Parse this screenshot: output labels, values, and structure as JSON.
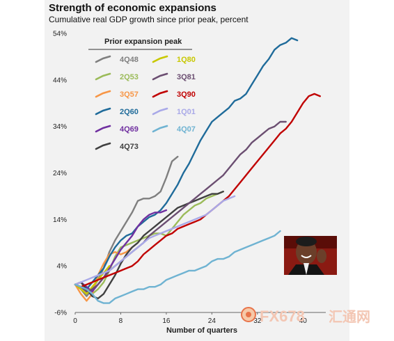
{
  "title": "Strength of economic expansions",
  "subtitle": "Cumulative real GDP growth since prior peak, percent",
  "watermark": {
    "brand": "FX678",
    "cn": "汇通网"
  },
  "photo": {
    "subject": "smiling-man-photo"
  },
  "chart_data": {
    "type": "line",
    "title": "Strength of economic expansions",
    "xlabel": "Number of quarters",
    "ylabel": "",
    "xlim": [
      0,
      44
    ],
    "ylim": [
      -6,
      54
    ],
    "x_ticks": [
      0,
      8,
      16,
      24,
      32,
      40
    ],
    "y_ticks": [
      -6,
      4,
      14,
      24,
      34,
      44,
      54
    ],
    "y_tick_labels": [
      "-6%",
      "4%",
      "14%",
      "24%",
      "34%",
      "44%",
      "54%"
    ],
    "legend_title": "Prior expansion peak",
    "legend_placement": "top-left",
    "grid": false,
    "series": [
      {
        "name": "4Q48",
        "color": "#7f7f7f",
        "x": [
          0,
          1,
          2,
          3,
          4,
          5,
          6,
          7,
          8,
          9,
          10,
          11,
          12,
          13,
          14,
          15,
          16,
          17,
          18
        ],
        "y": [
          0,
          -1,
          -2.5,
          -1,
          1,
          3.5,
          7,
          9.5,
          11.5,
          13.5,
          15.5,
          18,
          18.5,
          18.5,
          19,
          20,
          23,
          26.5,
          27.5
        ]
      },
      {
        "name": "2Q53",
        "color": "#9bbb59",
        "x": [
          0,
          1,
          2,
          3,
          4,
          5,
          6,
          7,
          8,
          9,
          10,
          11,
          12,
          13,
          14,
          15,
          16,
          17,
          18,
          19,
          20,
          21,
          22,
          23,
          24,
          25,
          26
        ],
        "y": [
          0,
          -0.5,
          -1.5,
          -2,
          -1,
          0.5,
          3,
          6,
          8,
          8.5,
          9,
          9.5,
          10,
          10.5,
          11,
          11,
          10.5,
          12,
          13.5,
          15,
          16,
          17,
          17.5,
          18.5,
          19,
          19.5,
          20
        ]
      },
      {
        "name": "3Q57",
        "color": "#f79646",
        "x": [
          0,
          1,
          2,
          3,
          4,
          5,
          6,
          7,
          8,
          9,
          10
        ],
        "y": [
          0,
          -2,
          -3.5,
          -2,
          2,
          4.5,
          6.5,
          7,
          6.5,
          7,
          8
        ]
      },
      {
        "name": "2Q60",
        "color": "#1f6b9a",
        "x": [
          0,
          1,
          2,
          3,
          4,
          5,
          6,
          7,
          8,
          9,
          10,
          11,
          12,
          13,
          14,
          15,
          16,
          17,
          18,
          19,
          20,
          21,
          22,
          23,
          24,
          25,
          26,
          27,
          28,
          29,
          30,
          31,
          32,
          33,
          34,
          35,
          36,
          37,
          38,
          39
        ],
        "y": [
          0,
          -0.5,
          -1,
          0.5,
          2,
          3.5,
          6,
          8,
          9.5,
          10.5,
          11,
          12.5,
          13.5,
          14.5,
          15,
          16,
          17.5,
          19.5,
          21.5,
          24,
          26,
          28.5,
          31,
          33,
          35,
          36,
          37,
          38,
          39.5,
          40,
          41,
          43,
          45,
          47,
          48.5,
          50.5,
          51.5,
          52,
          53,
          52.5
        ]
      },
      {
        "name": "4Q69",
        "color": "#7030a0",
        "x": [
          0,
          1,
          2,
          3,
          4,
          5,
          6,
          7,
          8,
          9,
          10,
          11,
          12,
          13,
          14,
          15,
          16
        ],
        "y": [
          0,
          0.5,
          -0.5,
          -1.5,
          0,
          1.5,
          3.5,
          5.5,
          7.5,
          9,
          10.5,
          12.5,
          14,
          15,
          15.5,
          15.5,
          16
        ]
      },
      {
        "name": "4Q73",
        "color": "#404040",
        "x": [
          0,
          1,
          2,
          3,
          4,
          5,
          6,
          7,
          8,
          9,
          10,
          11,
          12,
          13,
          14,
          15,
          16,
          17,
          18,
          19,
          20,
          21,
          22,
          23,
          24,
          25,
          26
        ],
        "y": [
          0,
          0.5,
          -1,
          -2.5,
          -3,
          -2,
          0,
          2,
          4.5,
          6.5,
          8,
          9,
          10.5,
          11.5,
          12.5,
          13.5,
          14.5,
          15.5,
          16.5,
          17,
          17.5,
          18,
          18.5,
          19,
          19.5,
          19.5,
          20
        ]
      },
      {
        "name": "1Q80",
        "color": "#c8c800",
        "x": [
          0,
          1,
          2,
          3,
          4,
          5,
          6
        ],
        "y": [
          0,
          -1,
          -2,
          -0.5,
          1,
          2.5,
          4
        ]
      },
      {
        "name": "3Q81",
        "color": "#6b4e71",
        "x": [
          0,
          1,
          2,
          3,
          4,
          5,
          6,
          7,
          8,
          9,
          10,
          11,
          12,
          13,
          14,
          15,
          16,
          17,
          18,
          19,
          20,
          21,
          22,
          23,
          24,
          25,
          26,
          27,
          28,
          29,
          30,
          31,
          32,
          33,
          34,
          35,
          36,
          37
        ],
        "y": [
          0,
          -0.5,
          -1.5,
          -1,
          0,
          1.5,
          3,
          4,
          5,
          6,
          7,
          8,
          9,
          10.5,
          11.5,
          12.5,
          13.5,
          14.5,
          15.5,
          16.5,
          17.5,
          18.5,
          19.5,
          20.5,
          21.5,
          22.5,
          23.5,
          25,
          26.5,
          28,
          29,
          30.5,
          31.5,
          32.5,
          33.5,
          34,
          35,
          35
        ]
      },
      {
        "name": "3Q90",
        "color": "#c00000",
        "x": [
          0,
          1,
          2,
          3,
          4,
          5,
          6,
          7,
          8,
          9,
          10,
          11,
          12,
          13,
          14,
          15,
          16,
          17,
          18,
          19,
          20,
          21,
          22,
          23,
          24,
          25,
          26,
          27,
          28,
          29,
          30,
          31,
          32,
          33,
          34,
          35,
          36,
          37,
          38,
          39,
          40,
          41,
          42,
          43
        ],
        "y": [
          0,
          -0.5,
          0,
          0.5,
          1,
          1.5,
          2,
          2.5,
          3,
          3.5,
          4,
          5,
          6.5,
          7.5,
          8.5,
          9.5,
          10.5,
          11,
          12,
          12.5,
          13,
          13.5,
          14,
          15,
          16,
          17,
          18,
          19,
          20.5,
          22,
          23.5,
          25,
          26.5,
          28,
          29.5,
          31,
          32.5,
          33.5,
          35,
          37,
          39,
          40.5,
          41,
          40.5
        ]
      },
      {
        "name": "1Q01",
        "color": "#a9a9e8",
        "x": [
          0,
          1,
          2,
          3,
          4,
          5,
          6,
          7,
          8,
          9,
          10,
          11,
          12,
          13,
          14,
          15,
          16,
          17,
          18,
          19,
          20,
          21,
          22,
          23,
          24,
          25,
          26,
          27,
          28
        ],
        "y": [
          0,
          0.5,
          1,
          1.5,
          2,
          2.5,
          3,
          4,
          5,
          6,
          7,
          8,
          9,
          10,
          10.5,
          11,
          11.5,
          12,
          12.5,
          13,
          13.5,
          14,
          14.5,
          15,
          16,
          17,
          18,
          18.5,
          19
        ]
      },
      {
        "name": "4Q07",
        "color": "#6fb3d2",
        "x": [
          0,
          1,
          2,
          3,
          4,
          5,
          6,
          7,
          8,
          9,
          10,
          11,
          12,
          13,
          14,
          15,
          16,
          17,
          18,
          19,
          20,
          21,
          22,
          23,
          24,
          25,
          26,
          27,
          28,
          29,
          30,
          31,
          32,
          33,
          34,
          35,
          36
        ],
        "y": [
          0,
          -0.5,
          -1,
          -2,
          -3.5,
          -4,
          -4,
          -3,
          -2.5,
          -2,
          -1.5,
          -1,
          -1,
          -0.5,
          -0.5,
          0,
          1,
          1.5,
          2,
          2.5,
          3,
          3,
          3.5,
          4,
          5,
          5.5,
          5.5,
          6,
          7,
          7.5,
          8,
          8.5,
          9,
          9.5,
          10,
          10.5,
          11.5
        ]
      }
    ]
  }
}
